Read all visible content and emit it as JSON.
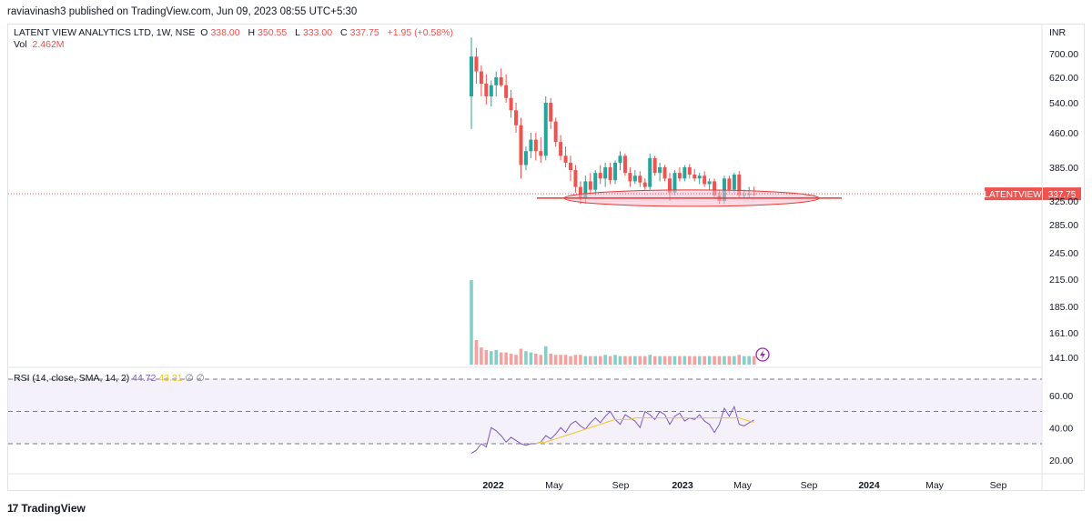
{
  "header": {
    "publisher": "raviavinash3 published on TradingView.com, Jun 09, 2023 08:55 UTC+5:30"
  },
  "legend": {
    "title": "LATENT VIEW ANALYTICS LTD, 1W, NSE",
    "o_label": "O",
    "o_value": "338.00",
    "h_label": "H",
    "h_value": "350.55",
    "l_label": "L",
    "l_value": "333.00",
    "c_label": "C",
    "c_value": "337.75",
    "change": "+1.95 (+0.58%)",
    "vol_label": "Vol",
    "vol_value": "2.462M"
  },
  "rsi_legend": {
    "title": "RSI (14, close, SMA, 14, 2)",
    "rsi": "44.72",
    "sma": "43.31",
    "extra": "∅ ∅"
  },
  "currency": "INR",
  "price_tag": {
    "symbol": "LATENTVIEW",
    "value": "337.75"
  },
  "footer": {
    "brand": "TradingView",
    "logo": "17"
  },
  "colors": {
    "up": "#26a69a",
    "down": "#ef5350",
    "rsi": "#7e57c2",
    "rsi_sma": "#f7c325",
    "band": "#ede7f6",
    "zone": "#f8bbd0"
  },
  "chart_data": {
    "type": "candlestick",
    "interval": "1W",
    "y_ticks": [
      700,
      620,
      540,
      460,
      385,
      325,
      285,
      245,
      215,
      185,
      161,
      141
    ],
    "y_tick_labels": [
      "700.00",
      "620.00",
      "540.00",
      "460.00",
      "385.00",
      "325.00",
      "285.00",
      "245.00",
      "215.00",
      "185.00",
      "161.00",
      "141.00"
    ],
    "x_ticks": [
      "2022",
      "May",
      "Sep",
      "2023",
      "May",
      "Sep",
      "2024",
      "May",
      "Sep"
    ],
    "last_close": 337.75,
    "support_level": 330,
    "candles": [
      {
        "o": 560,
        "h": 755,
        "l": 470,
        "c": 690
      },
      {
        "o": 690,
        "h": 720,
        "l": 600,
        "c": 640
      },
      {
        "o": 640,
        "h": 660,
        "l": 560,
        "c": 600
      },
      {
        "o": 600,
        "h": 630,
        "l": 535,
        "c": 560
      },
      {
        "o": 560,
        "h": 610,
        "l": 530,
        "c": 595
      },
      {
        "o": 595,
        "h": 640,
        "l": 560,
        "c": 620
      },
      {
        "o": 620,
        "h": 650,
        "l": 590,
        "c": 595
      },
      {
        "o": 595,
        "h": 630,
        "l": 540,
        "c": 555
      },
      {
        "o": 555,
        "h": 580,
        "l": 500,
        "c": 520
      },
      {
        "o": 520,
        "h": 540,
        "l": 460,
        "c": 480
      },
      {
        "o": 480,
        "h": 500,
        "l": 365,
        "c": 390
      },
      {
        "o": 390,
        "h": 430,
        "l": 380,
        "c": 420
      },
      {
        "o": 420,
        "h": 460,
        "l": 405,
        "c": 445
      },
      {
        "o": 445,
        "h": 460,
        "l": 400,
        "c": 420
      },
      {
        "o": 420,
        "h": 450,
        "l": 395,
        "c": 410
      },
      {
        "o": 410,
        "h": 560,
        "l": 400,
        "c": 540
      },
      {
        "o": 540,
        "h": 555,
        "l": 470,
        "c": 490
      },
      {
        "o": 490,
        "h": 500,
        "l": 430,
        "c": 440
      },
      {
        "o": 440,
        "h": 455,
        "l": 400,
        "c": 410
      },
      {
        "o": 410,
        "h": 430,
        "l": 385,
        "c": 395
      },
      {
        "o": 395,
        "h": 410,
        "l": 360,
        "c": 380
      },
      {
        "o": 380,
        "h": 390,
        "l": 340,
        "c": 350
      },
      {
        "o": 350,
        "h": 360,
        "l": 320,
        "c": 330
      },
      {
        "o": 330,
        "h": 370,
        "l": 320,
        "c": 360
      },
      {
        "o": 360,
        "h": 375,
        "l": 340,
        "c": 345
      },
      {
        "o": 345,
        "h": 380,
        "l": 335,
        "c": 375
      },
      {
        "o": 375,
        "h": 390,
        "l": 355,
        "c": 365
      },
      {
        "o": 365,
        "h": 395,
        "l": 350,
        "c": 385
      },
      {
        "o": 385,
        "h": 395,
        "l": 355,
        "c": 362
      },
      {
        "o": 362,
        "h": 400,
        "l": 355,
        "c": 395
      },
      {
        "o": 395,
        "h": 420,
        "l": 380,
        "c": 410
      },
      {
        "o": 410,
        "h": 415,
        "l": 370,
        "c": 375
      },
      {
        "o": 375,
        "h": 385,
        "l": 350,
        "c": 360
      },
      {
        "o": 360,
        "h": 380,
        "l": 355,
        "c": 370
      },
      {
        "o": 370,
        "h": 378,
        "l": 350,
        "c": 358
      },
      {
        "o": 358,
        "h": 365,
        "l": 345,
        "c": 350
      },
      {
        "o": 350,
        "h": 415,
        "l": 345,
        "c": 405
      },
      {
        "o": 405,
        "h": 410,
        "l": 370,
        "c": 375
      },
      {
        "o": 375,
        "h": 395,
        "l": 360,
        "c": 385
      },
      {
        "o": 385,
        "h": 390,
        "l": 360,
        "c": 365
      },
      {
        "o": 365,
        "h": 375,
        "l": 325,
        "c": 340
      },
      {
        "o": 340,
        "h": 380,
        "l": 335,
        "c": 375
      },
      {
        "o": 375,
        "h": 385,
        "l": 360,
        "c": 365
      },
      {
        "o": 365,
        "h": 390,
        "l": 360,
        "c": 385
      },
      {
        "o": 385,
        "h": 392,
        "l": 365,
        "c": 372
      },
      {
        "o": 372,
        "h": 382,
        "l": 360,
        "c": 365
      },
      {
        "o": 365,
        "h": 375,
        "l": 355,
        "c": 370
      },
      {
        "o": 370,
        "h": 378,
        "l": 350,
        "c": 355
      },
      {
        "o": 355,
        "h": 365,
        "l": 345,
        "c": 360
      },
      {
        "o": 360,
        "h": 365,
        "l": 330,
        "c": 335
      },
      {
        "o": 335,
        "h": 345,
        "l": 320,
        "c": 325
      },
      {
        "o": 325,
        "h": 370,
        "l": 320,
        "c": 365
      },
      {
        "o": 365,
        "h": 370,
        "l": 340,
        "c": 345
      },
      {
        "o": 345,
        "h": 375,
        "l": 340,
        "c": 372
      },
      {
        "o": 372,
        "h": 378,
        "l": 330,
        "c": 335
      },
      {
        "o": 335,
        "h": 345,
        "l": 330,
        "c": 336
      },
      {
        "o": 336,
        "h": 350,
        "l": 330,
        "c": 338
      },
      {
        "o": 338,
        "h": 350.55,
        "l": 333,
        "c": 337.75
      }
    ],
    "volume": [
      214,
      155,
      149,
      147,
      146,
      147,
      145,
      145,
      144,
      143,
      148,
      146,
      145,
      144,
      143,
      150,
      144,
      143,
      143,
      143,
      142,
      143,
      143,
      142,
      142,
      142,
      142,
      143,
      142,
      143,
      142,
      142,
      142,
      142,
      142,
      142,
      143,
      142,
      142,
      142,
      142,
      142,
      142,
      142,
      142,
      142,
      142,
      142,
      142,
      142,
      142,
      142,
      142,
      142,
      143,
      142,
      142,
      142
    ],
    "rsi": {
      "ticks": [
        60,
        40,
        20
      ],
      "tick_labels": [
        "60.00",
        "40.00",
        "20.00"
      ],
      "levels": [
        70,
        50,
        30
      ],
      "values": [
        24,
        26,
        30,
        28,
        40,
        38,
        35,
        31,
        34,
        32,
        30,
        29,
        30,
        30,
        31,
        35,
        33,
        36,
        40,
        37,
        42,
        44,
        41,
        39,
        43,
        46,
        43,
        47,
        50,
        45,
        42,
        48,
        46,
        44,
        40,
        50,
        48,
        45,
        50,
        48,
        42,
        47,
        49,
        44,
        46,
        45,
        48,
        44,
        42,
        37,
        42,
        52,
        47,
        53,
        42,
        41,
        43,
        44.72
      ],
      "sma_start": 13,
      "sma": [
        30,
        31,
        31,
        32,
        33,
        34,
        35,
        36,
        37,
        38,
        39,
        40,
        41,
        42,
        43,
        44,
        45,
        45,
        45,
        45,
        46,
        46,
        46,
        46,
        46,
        46,
        46,
        46,
        46,
        46,
        46,
        46,
        46,
        46,
        46,
        46,
        46,
        46,
        46,
        46,
        46,
        46,
        45,
        44,
        43.31
      ]
    }
  }
}
